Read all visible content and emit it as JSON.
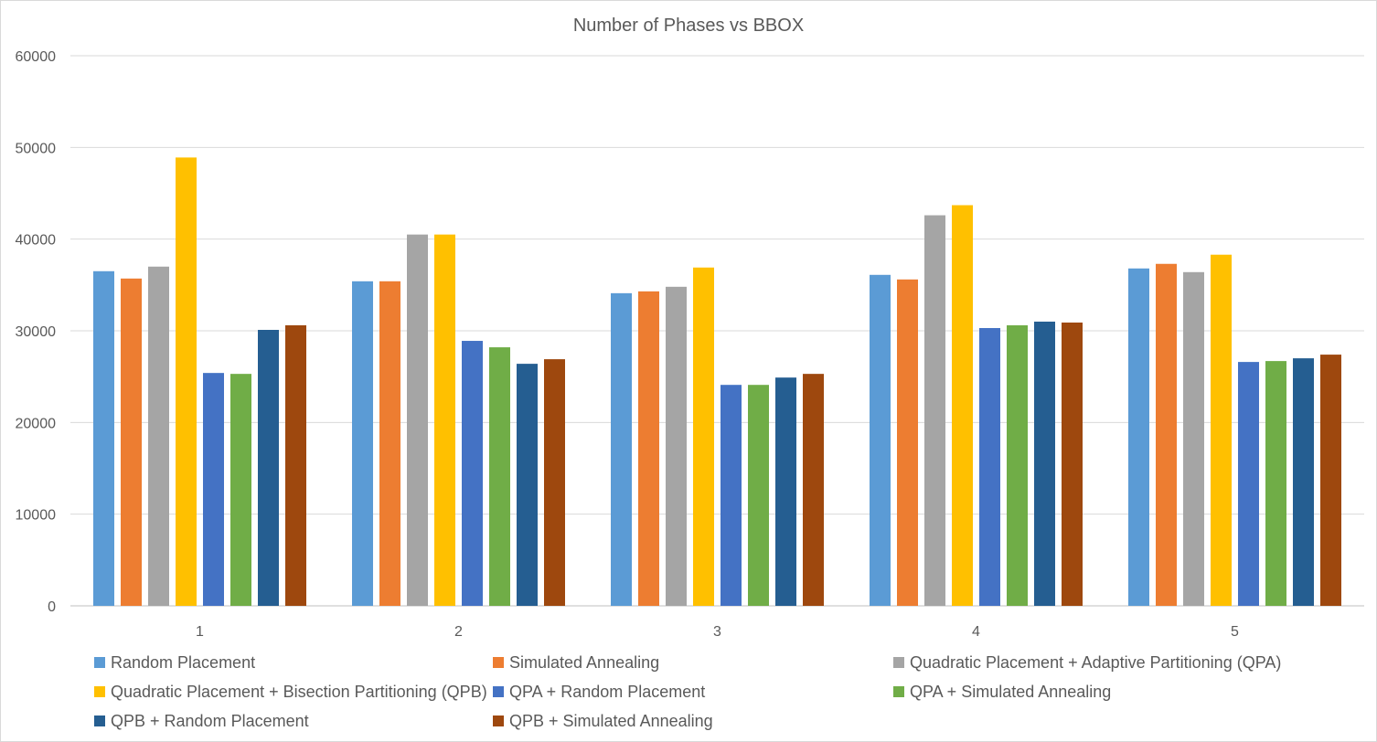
{
  "chart_data": {
    "type": "bar",
    "title": "Number of Phases vs BBOX",
    "xlabel": "",
    "ylabel": "",
    "categories": [
      "1",
      "2",
      "3",
      "4",
      "5"
    ],
    "ylim": [
      0,
      60000
    ],
    "yticks": [
      "0",
      "10000",
      "20000",
      "30000",
      "40000",
      "50000",
      "60000"
    ],
    "grid": true,
    "legend_position": "bottom",
    "series": [
      {
        "name": "Random Placement",
        "color": "#5B9BD5",
        "values": [
          36500,
          35400,
          34100,
          36100,
          36800
        ]
      },
      {
        "name": "Simulated Annealing",
        "color": "#ED7D31",
        "values": [
          35700,
          35400,
          34300,
          35600,
          37300
        ]
      },
      {
        "name": "Quadratic Placement + Adaptive Partitioning (QPA)",
        "color": "#A5A5A5",
        "values": [
          37000,
          40500,
          34800,
          42600,
          36400
        ]
      },
      {
        "name": "Quadratic Placement + Bisection Partitioning (QPB)",
        "color": "#FFC000",
        "values": [
          48900,
          40500,
          36900,
          43700,
          38300
        ]
      },
      {
        "name": "QPA + Random Placement",
        "color": "#4472C4",
        "values": [
          25400,
          28900,
          24100,
          30300,
          26600
        ]
      },
      {
        "name": "QPA + Simulated Annealing",
        "color": "#70AD47",
        "values": [
          25300,
          28200,
          24100,
          30600,
          26700
        ]
      },
      {
        "name": "QPB + Random Placement",
        "color": "#255E91",
        "values": [
          30100,
          26400,
          24900,
          31000,
          27000
        ]
      },
      {
        "name": "QPB + Simulated Annealing",
        "color": "#9E480E",
        "values": [
          30600,
          26900,
          25300,
          30900,
          27400
        ]
      }
    ]
  }
}
